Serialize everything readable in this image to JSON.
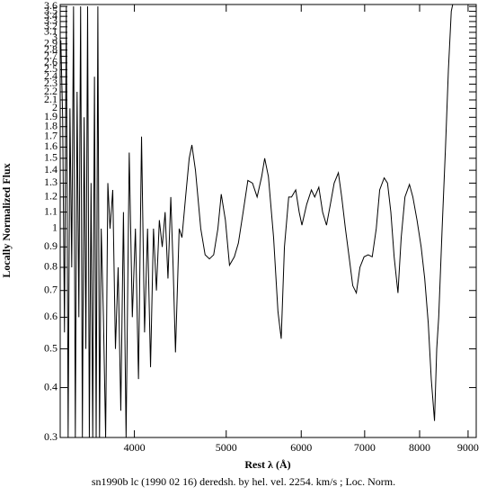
{
  "chart_data": {
    "type": "line",
    "caption": "sn1990b lc (1990 02 16) deredsh. by hel. vel.  2254. km/s ;  Loc. Norm.",
    "x_label": "Rest λ (Å)",
    "y_label": "Locally Normalized Flux",
    "x_scale": "log",
    "y_scale": "log",
    "color": "#000000",
    "xlim": [
      3340,
      9180
    ],
    "ylim": [
      0.3,
      3.64
    ],
    "xticks": [
      4000,
      5000,
      6000,
      7000,
      8000,
      9000
    ],
    "yticks": [
      0.3,
      0.4,
      0.5,
      0.6,
      0.7,
      0.8,
      0.9,
      1,
      1.1,
      1.2,
      1.3,
      1.4,
      1.5,
      1.6,
      1.7,
      1.8,
      1.9,
      2,
      2.1,
      2.2,
      2.3,
      2.4,
      2.5,
      2.6,
      2.7,
      2.8,
      2.9,
      3,
      3.1,
      3.2,
      3.3,
      3.4,
      3.5,
      3.6
    ],
    "x": [
      3345,
      3360,
      3375,
      3390,
      3405,
      3420,
      3435,
      3450,
      3465,
      3480,
      3495,
      3510,
      3525,
      3540,
      3555,
      3570,
      3585,
      3600,
      3615,
      3630,
      3645,
      3660,
      3675,
      3690,
      3710,
      3730,
      3750,
      3770,
      3795,
      3820,
      3845,
      3870,
      3895,
      3920,
      3950,
      3980,
      4010,
      4040,
      4070,
      4100,
      4130,
      4160,
      4190,
      4220,
      4250,
      4280,
      4310,
      4340,
      4370,
      4395,
      4420,
      4460,
      4490,
      4530,
      4570,
      4600,
      4640,
      4700,
      4750,
      4800,
      4850,
      4900,
      4940,
      4990,
      5040,
      5100,
      5150,
      5210,
      5270,
      5330,
      5390,
      5450,
      5490,
      5540,
      5610,
      5670,
      5715,
      5760,
      5820,
      5860,
      5920,
      5970,
      6010,
      6080,
      6150,
      6200,
      6262,
      6320,
      6380,
      6440,
      6500,
      6567,
      6620,
      6680,
      6740,
      6800,
      6860,
      6920,
      6990,
      7060,
      7130,
      7200,
      7260,
      7340,
      7400,
      7460,
      7520,
      7590,
      7650,
      7720,
      7805,
      7870,
      7950,
      8030,
      8100,
      8170,
      8230,
      8295,
      8340,
      8380,
      8450,
      8520,
      8580,
      8640,
      8670
    ],
    "values": [
      2.96,
      1.9,
      0.55,
      3.6,
      0.3,
      2.0,
      0.8,
      3.6,
      0.3,
      2.2,
      0.6,
      3.6,
      0.3,
      1.9,
      0.5,
      3.6,
      0.3,
      1.3,
      0.3,
      2.4,
      0.3,
      3.6,
      0.3,
      1.0,
      0.6,
      0.3,
      1.3,
      1.0,
      1.25,
      0.5,
      0.8,
      0.35,
      1.1,
      0.3,
      1.55,
      0.6,
      1.0,
      0.42,
      1.7,
      0.55,
      1.0,
      0.45,
      1.0,
      0.7,
      1.05,
      0.9,
      1.1,
      0.75,
      1.2,
      0.8,
      0.49,
      1.0,
      0.95,
      1.2,
      1.5,
      1.62,
      1.4,
      1.0,
      0.86,
      0.84,
      0.86,
      1.0,
      1.22,
      1.05,
      0.81,
      0.85,
      0.92,
      1.1,
      1.32,
      1.3,
      1.2,
      1.35,
      1.5,
      1.35,
      0.95,
      0.62,
      0.53,
      0.9,
      1.2,
      1.2,
      1.25,
      1.1,
      1.02,
      1.15,
      1.25,
      1.2,
      1.27,
      1.1,
      1.02,
      1.15,
      1.3,
      1.38,
      1.2,
      1.0,
      0.85,
      0.72,
      0.69,
      0.8,
      0.85,
      0.86,
      0.85,
      1.0,
      1.25,
      1.34,
      1.3,
      1.1,
      0.85,
      0.69,
      0.95,
      1.2,
      1.29,
      1.2,
      1.05,
      0.9,
      0.75,
      0.58,
      0.42,
      0.33,
      0.5,
      0.6,
      1.0,
      1.6,
      2.5,
      3.5,
      3.64
    ]
  }
}
